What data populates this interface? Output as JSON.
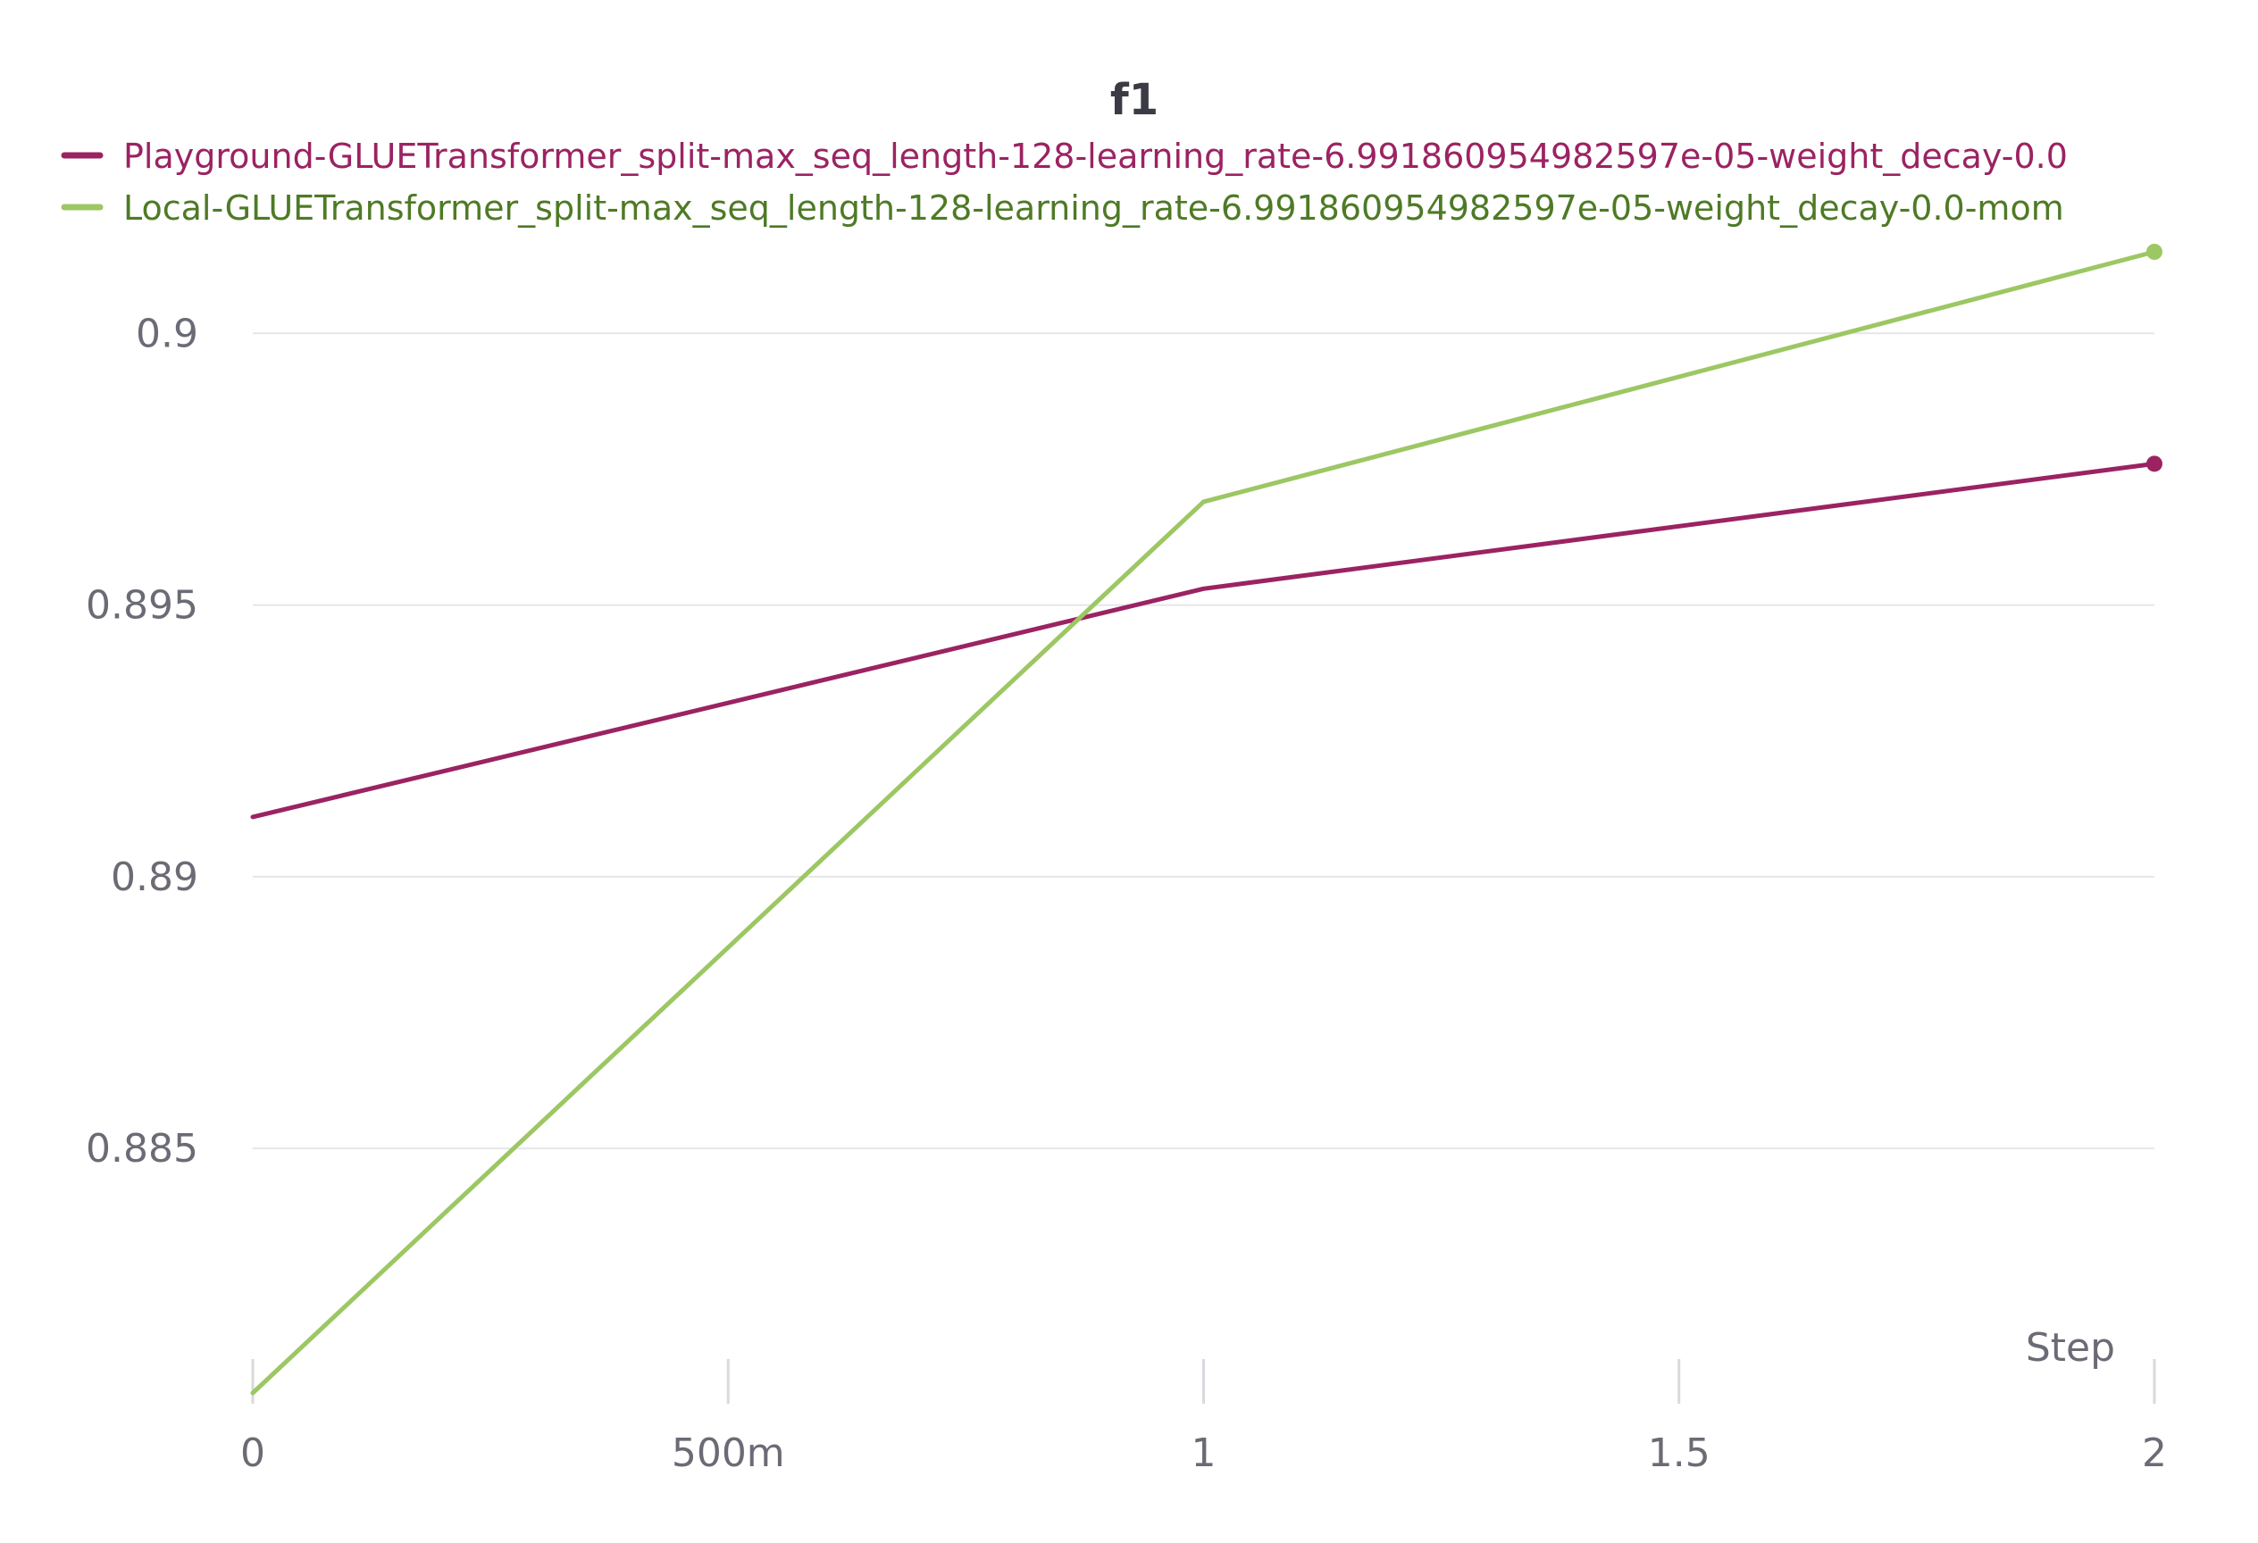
{
  "chart_data": {
    "type": "line",
    "title": "f1",
    "xlabel": "Step",
    "ylabel": "",
    "xlim": [
      0,
      2
    ],
    "ylim": [
      0.8805,
      0.9015
    ],
    "x_ticks": [
      0,
      0.5,
      1,
      1.5,
      2
    ],
    "x_tick_labels": [
      "0",
      "500m",
      "1",
      "1.5",
      "2"
    ],
    "y_ticks": [
      0.885,
      0.89,
      0.895,
      0.9
    ],
    "y_tick_labels": [
      "0.885",
      "0.89",
      "0.895",
      "0.9"
    ],
    "grid": "horizontal",
    "legend_position": "top-left",
    "series": [
      {
        "name": "Playground-GLUETransformer_split-max_seq_length-128-learning_rate-6.991860954982597e-05-weight_decay-0.0",
        "color": "#9b2362",
        "label_color": "#9b2362",
        "x": [
          0,
          1,
          2
        ],
        "values": [
          0.8911,
          0.8953,
          0.8976
        ]
      },
      {
        "name": "Local-GLUETransformer_split-max_seq_length-128-learning_rate-6.991860954982597e-05-weight_decay-0.0-mom",
        "color": "#9cc763",
        "label_color": "#4e7a25",
        "x": [
          0,
          1,
          2
        ],
        "values": [
          0.8805,
          0.8969,
          0.9015
        ]
      }
    ]
  }
}
